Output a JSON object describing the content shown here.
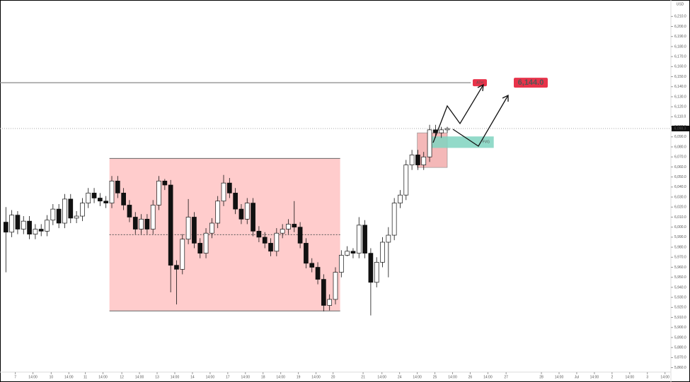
{
  "chart_data": {
    "type": "candlestick",
    "unit": "USD",
    "xlim": [
      -1,
      113
    ],
    "ylim": [
      5855.5,
      6225
    ],
    "xticks": [
      {
        "value": 1.6,
        "label": "7"
      },
      {
        "value": 4.6,
        "label": "14:00"
      },
      {
        "value": 7.7,
        "label": "10"
      },
      {
        "value": 10.7,
        "label": "14:00"
      },
      {
        "value": 13.5,
        "label": "11"
      },
      {
        "value": 16.5,
        "label": "14:00"
      },
      {
        "value": 19.7,
        "label": "12"
      },
      {
        "value": 22.7,
        "label": "14:00"
      },
      {
        "value": 25.7,
        "label": "13"
      },
      {
        "value": 28.7,
        "label": "14:00"
      },
      {
        "value": 31.7,
        "label": "14"
      },
      {
        "value": 34.7,
        "label": "14:00"
      },
      {
        "value": 37.7,
        "label": "17"
      },
      {
        "value": 40.7,
        "label": "14:00"
      },
      {
        "value": 43.7,
        "label": "18"
      },
      {
        "value": 46.7,
        "label": "14:00"
      },
      {
        "value": 49.7,
        "label": "19"
      },
      {
        "value": 52.7,
        "label": "14:00"
      },
      {
        "value": 55.6,
        "label": "20"
      },
      {
        "value": 60.7,
        "label": "21"
      },
      {
        "value": 63.9,
        "label": "14:00"
      },
      {
        "value": 66.9,
        "label": "24"
      },
      {
        "value": 69.9,
        "label": "14:00"
      },
      {
        "value": 72.9,
        "label": "25"
      },
      {
        "value": 75.9,
        "label": "14:00"
      },
      {
        "value": 78.9,
        "label": "26"
      },
      {
        "value": 81.9,
        "label": "14:00"
      },
      {
        "value": 85,
        "label": "27"
      },
      {
        "value": 91,
        "label": "28"
      },
      {
        "value": 94,
        "label": "14:00"
      },
      {
        "value": 97,
        "label": "Jul"
      },
      {
        "value": 100,
        "label": "14:00"
      },
      {
        "value": 103,
        "label": "2"
      },
      {
        "value": 106,
        "label": "14:00"
      },
      {
        "value": 109,
        "label": "3"
      },
      {
        "value": 112,
        "label": "14:00"
      }
    ],
    "yticks": [
      {
        "value": 5860,
        "label": "5,860.0"
      },
      {
        "value": 5870,
        "label": "5,870.0"
      },
      {
        "value": 5880,
        "label": "5,880.0"
      },
      {
        "value": 5890,
        "label": "5,890.0"
      },
      {
        "value": 5900,
        "label": "5,900.0"
      },
      {
        "value": 5910,
        "label": "5,910.0"
      },
      {
        "value": 5920,
        "label": "5,920.0"
      },
      {
        "value": 5930,
        "label": "5,930.0"
      },
      {
        "value": 5940,
        "label": "5,940.0"
      },
      {
        "value": 5950,
        "label": "5,950.0"
      },
      {
        "value": 5960,
        "label": "5,960.0"
      },
      {
        "value": 5970,
        "label": "5,970.0"
      },
      {
        "value": 5980,
        "label": "5,980.0"
      },
      {
        "value": 5990,
        "label": "5,990.0"
      },
      {
        "value": 6000,
        "label": "6,000.0"
      },
      {
        "value": 6010,
        "label": "6,010.0"
      },
      {
        "value": 6020,
        "label": "6,020.0"
      },
      {
        "value": 6030,
        "label": "6,030.0"
      },
      {
        "value": 6040,
        "label": "6,040.0"
      },
      {
        "value": 6050,
        "label": "6,050.0"
      },
      {
        "value": 6060,
        "label": "6,060.0"
      },
      {
        "value": 6070,
        "label": "6,070.0"
      },
      {
        "value": 6080,
        "label": "6,080.0"
      },
      {
        "value": 6090,
        "label": "6,090.0"
      },
      {
        "value": 6100,
        "label": "6,100.0"
      },
      {
        "value": 6110,
        "label": "6,110.0"
      },
      {
        "value": 6120,
        "label": "6,120.0"
      },
      {
        "value": 6130,
        "label": "6,130.0"
      },
      {
        "value": 6140,
        "label": "6,140.0"
      },
      {
        "value": 6150,
        "label": "6,150.0"
      },
      {
        "value": 6160,
        "label": "6,160.0"
      },
      {
        "value": 6170,
        "label": "6,170.0"
      },
      {
        "value": 6180,
        "label": "6,180.0"
      },
      {
        "value": 6190,
        "label": "6,190.0"
      },
      {
        "value": 6200,
        "label": "6,200.0"
      },
      {
        "value": 6210,
        "label": "6,210.0"
      }
    ],
    "open": [
      6005,
      5995,
      6012,
      5998,
      6006,
      5993,
      5998,
      5996,
      6007,
      6018,
      6004,
      6028,
      6009,
      6011,
      6024,
      6034,
      6029,
      6026,
      6024,
      6046,
      6034,
      6022,
      6010,
      5998,
      6008,
      5998,
      6022,
      6046,
      6042,
      5962,
      5958,
      5988,
      6010,
      5984,
      5974,
      5994,
      6004,
      6026,
      6044,
      6034,
      6018,
      6008,
      6024,
      5996,
      5990,
      5984,
      5976,
      5994,
      5998,
      6003,
      6000,
      5984,
      5964,
      5960,
      5948,
      5922,
      5928,
      5955,
      5972,
      5976,
      5974,
      6002,
      5974,
      5945,
      5965,
      5985,
      5992,
      6024,
      6032,
      6062,
      6072,
      6062,
      6070,
      6097,
      6094,
      6097
    ],
    "high": [
      6020,
      6017,
      6016,
      6011,
      6011,
      6003,
      6003,
      6012,
      6023,
      6023,
      6033,
      6033,
      6016,
      6029,
      6039,
      6039,
      6034,
      6031,
      6051,
      6051,
      6039,
      6027,
      6015,
      6013,
      6013,
      6027,
      6051,
      6048,
      6047,
      5967,
      5993,
      6028,
      6015,
      5989,
      5999,
      6009,
      6031,
      6052,
      6049,
      6039,
      6023,
      6029,
      6029,
      6001,
      5995,
      5989,
      5999,
      6003,
      6008,
      6026,
      6005,
      5989,
      5969,
      5965,
      5953,
      5933,
      5960,
      5977,
      5981,
      5979,
      6010,
      6007,
      5979,
      5970,
      5990,
      6000,
      6029,
      6037,
      6067,
      6077,
      6077,
      6075,
      6102,
      6102,
      6100,
      6100
    ],
    "low": [
      5955,
      5990,
      5993,
      5993,
      5988,
      5988,
      5991,
      5991,
      6002,
      5999,
      5999,
      6004,
      6004,
      6006,
      6019,
      6024,
      6021,
      6019,
      6019,
      6029,
      6017,
      6005,
      5993,
      5993,
      5993,
      5993,
      6017,
      6037,
      5935,
      5923,
      5953,
      5983,
      5979,
      5969,
      5969,
      5989,
      5999,
      6021,
      6029,
      6013,
      6003,
      6003,
      5991,
      5985,
      5979,
      5971,
      5971,
      5989,
      5993,
      5995,
      5979,
      5959,
      5955,
      5943,
      5916,
      5917,
      5923,
      5950,
      5971,
      5969,
      5969,
      5969,
      5912,
      5940,
      5960,
      5950,
      5987,
      6019,
      6027,
      6057,
      6057,
      6057,
      6065,
      6089,
      6089,
      6094
    ],
    "close": [
      5995,
      6012,
      5998,
      6006,
      5993,
      5998,
      5996,
      6007,
      6018,
      6004,
      6028,
      6009,
      6011,
      6024,
      6034,
      6029,
      6026,
      6024,
      6046,
      6034,
      6022,
      6010,
      5998,
      6008,
      5998,
      6022,
      6046,
      6042,
      5962,
      5958,
      5988,
      6010,
      5984,
      5974,
      5994,
      6004,
      6026,
      6044,
      6034,
      6018,
      6008,
      6024,
      5996,
      5990,
      5984,
      5976,
      5994,
      5998,
      6003,
      6000,
      5984,
      5964,
      5960,
      5948,
      5922,
      5928,
      5955,
      5972,
      5976,
      5974,
      6002,
      5974,
      5945,
      5965,
      5985,
      5992,
      6024,
      6032,
      6062,
      6072,
      6062,
      6070,
      6097,
      6094,
      6097,
      6098.3
    ],
    "ath": {
      "label": "ATH",
      "value": 6144,
      "value_label": "6,144.0",
      "x_end": 79
    },
    "last_price": {
      "value": 6098.3,
      "value_label": "6,098.3"
    },
    "range_box": {
      "x": [
        17.6,
        56.8
      ],
      "y": [
        5916.5,
        6068.5
      ],
      "color": "#ffcccc"
    },
    "order_block": {
      "x": [
        69.9,
        75
      ],
      "y": [
        6059.5,
        6094
      ],
      "color": "#f4b8b8"
    },
    "fvg": {
      "label": "FVG",
      "x": [
        72.3,
        82.9
      ],
      "y": [
        6079,
        6090.4
      ],
      "color": "#7fd3c0"
    }
  }
}
